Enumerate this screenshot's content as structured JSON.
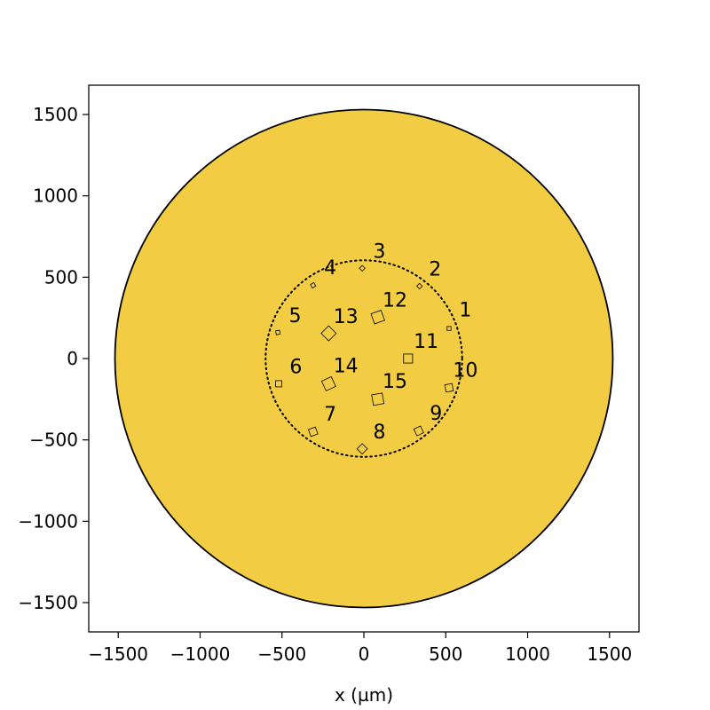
{
  "chart_data": {
    "type": "scatter",
    "title": "",
    "xlabel": "x (µm)",
    "ylabel": "",
    "xlim": [
      -1680,
      1680
    ],
    "ylim": [
      -1680,
      1680
    ],
    "xticks": [
      -1500,
      -1000,
      -500,
      0,
      500,
      1000,
      1500
    ],
    "yticks": [
      -1500,
      -1000,
      -500,
      0,
      500,
      1000,
      1500
    ],
    "xtick_labels": [
      "−1500",
      "−1000",
      "−500",
      "0",
      "500",
      "1000",
      "1500"
    ],
    "ytick_labels": [
      "−1500",
      "−1000",
      "−500",
      "0",
      "500",
      "1000",
      "1500"
    ],
    "grid": false,
    "legend": "none",
    "disk": {
      "radius": 1520,
      "fill": "#f2cd44",
      "edge": "#000000"
    },
    "ring": {
      "radius": 600,
      "style": "dotted",
      "color": "#000000"
    },
    "sites": [
      {
        "label": "1",
        "x": 520,
        "y": 185,
        "size": 24,
        "angle": 0
      },
      {
        "label": "2",
        "x": 340,
        "y": 445,
        "size": 24,
        "angle": 45
      },
      {
        "label": "3",
        "x": -10,
        "y": 555,
        "size": 24,
        "angle": 45
      },
      {
        "label": "4",
        "x": -310,
        "y": 450,
        "size": 24,
        "angle": 30
      },
      {
        "label": "5",
        "x": -525,
        "y": 160,
        "size": 24,
        "angle": 10
      },
      {
        "label": "6",
        "x": -520,
        "y": -155,
        "size": 38,
        "angle": 0
      },
      {
        "label": "7",
        "x": -310,
        "y": -450,
        "size": 45,
        "angle": 20
      },
      {
        "label": "8",
        "x": -10,
        "y": -555,
        "size": 45,
        "angle": 45
      },
      {
        "label": "9",
        "x": 335,
        "y": -445,
        "size": 45,
        "angle": 25
      },
      {
        "label": "10",
        "x": 520,
        "y": -180,
        "size": 45,
        "angle": 10
      },
      {
        "label": "11",
        "x": 270,
        "y": 0,
        "size": 55,
        "angle": 0
      },
      {
        "label": "12",
        "x": 85,
        "y": 255,
        "size": 65,
        "angle": 20
      },
      {
        "label": "13",
        "x": -215,
        "y": 155,
        "size": 65,
        "angle": 45
      },
      {
        "label": "14",
        "x": -215,
        "y": -155,
        "size": 65,
        "angle": 25
      },
      {
        "label": "15",
        "x": 85,
        "y": -250,
        "size": 65,
        "angle": 10
      }
    ],
    "site_label_positions": [
      {
        "label": "1",
        "x": 620,
        "y": 295
      },
      {
        "label": "2",
        "x": 435,
        "y": 545
      },
      {
        "label": "3",
        "x": 95,
        "y": 655
      },
      {
        "label": "4",
        "x": -205,
        "y": 555
      },
      {
        "label": "5",
        "x": -420,
        "y": 260
      },
      {
        "label": "6",
        "x": -415,
        "y": -55
      },
      {
        "label": "7",
        "x": -205,
        "y": -345
      },
      {
        "label": "8",
        "x": 95,
        "y": -455
      },
      {
        "label": "9",
        "x": 440,
        "y": -340
      },
      {
        "label": "10",
        "x": 620,
        "y": -75
      },
      {
        "label": "11",
        "x": 380,
        "y": 100
      },
      {
        "label": "12",
        "x": 190,
        "y": 355
      },
      {
        "label": "13",
        "x": -110,
        "y": 255
      },
      {
        "label": "14",
        "x": -110,
        "y": -50
      },
      {
        "label": "15",
        "x": 190,
        "y": -145
      }
    ]
  }
}
